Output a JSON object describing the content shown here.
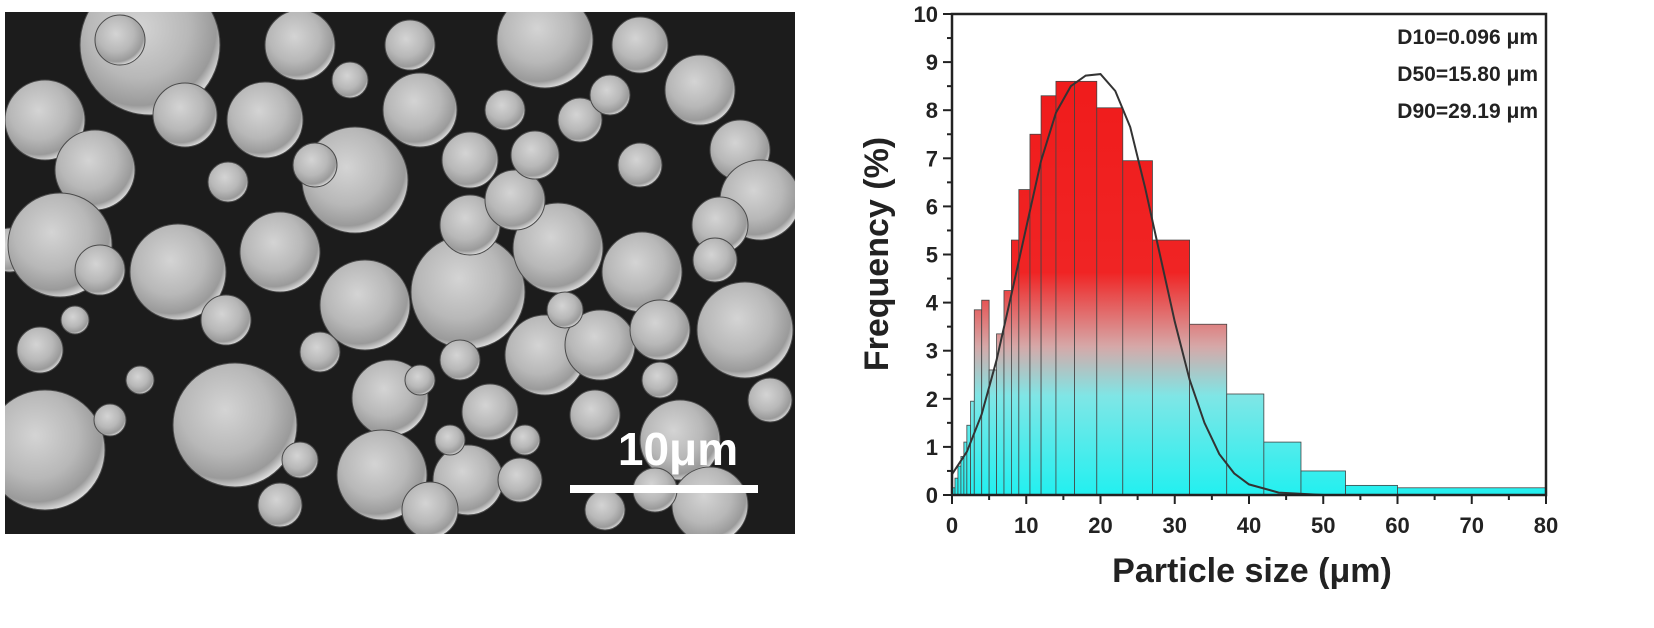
{
  "micrograph": {
    "scale_bar_label": "10μm"
  },
  "chart_data": {
    "type": "bar",
    "title": "",
    "xlabel": "Particle size (μm)",
    "ylabel": "Frequency (%)",
    "xlim": [
      0,
      80
    ],
    "ylim": [
      0,
      10
    ],
    "xticks": [
      "0",
      "10",
      "20",
      "30",
      "40",
      "50",
      "60",
      "70",
      "80"
    ],
    "yticks": [
      "0",
      "1",
      "2",
      "3",
      "4",
      "5",
      "6",
      "7",
      "8",
      "9",
      "10"
    ],
    "grid": false,
    "annotations": [
      "D10=0.096 μm",
      "D50=15.80 μm",
      "D90=29.19 μm"
    ],
    "bins": [
      {
        "x0": 0.0,
        "x1": 0.4,
        "value": 0.15
      },
      {
        "x0": 0.4,
        "x1": 0.8,
        "value": 0.35
      },
      {
        "x0": 0.8,
        "x1": 1.2,
        "value": 0.6
      },
      {
        "x0": 1.2,
        "x1": 1.6,
        "value": 0.8
      },
      {
        "x0": 1.6,
        "x1": 2.0,
        "value": 1.1
      },
      {
        "x0": 2.0,
        "x1": 2.5,
        "value": 1.45
      },
      {
        "x0": 2.5,
        "x1": 3.0,
        "value": 1.95
      },
      {
        "x0": 3.0,
        "x1": 4.0,
        "value": 3.85
      },
      {
        "x0": 4.0,
        "x1": 5.0,
        "value": 4.05
      },
      {
        "x0": 5.0,
        "x1": 6.0,
        "value": 2.6
      },
      {
        "x0": 6.0,
        "x1": 7.0,
        "value": 3.35
      },
      {
        "x0": 7.0,
        "x1": 8.0,
        "value": 4.25
      },
      {
        "x0": 8.0,
        "x1": 9.0,
        "value": 5.3
      },
      {
        "x0": 9.0,
        "x1": 10.5,
        "value": 6.35
      },
      {
        "x0": 10.5,
        "x1": 12.0,
        "value": 7.5
      },
      {
        "x0": 12.0,
        "x1": 14.0,
        "value": 8.3
      },
      {
        "x0": 14.0,
        "x1": 16.5,
        "value": 8.6
      },
      {
        "x0": 16.5,
        "x1": 19.5,
        "value": 8.6
      },
      {
        "x0": 19.5,
        "x1": 23.0,
        "value": 8.05
      },
      {
        "x0": 23.0,
        "x1": 27.0,
        "value": 6.95
      },
      {
        "x0": 27.0,
        "x1": 32.0,
        "value": 5.3
      },
      {
        "x0": 32.0,
        "x1": 37.0,
        "value": 3.55
      },
      {
        "x0": 37.0,
        "x1": 42.0,
        "value": 2.1
      },
      {
        "x0": 42.0,
        "x1": 47.0,
        "value": 1.1
      },
      {
        "x0": 47.0,
        "x1": 53.0,
        "value": 0.5
      },
      {
        "x0": 53.0,
        "x1": 60.0,
        "value": 0.2
      },
      {
        "x0": 60.0,
        "x1": 80.0,
        "value": 0.15
      }
    ],
    "fit_curve": {
      "type": "gaussian",
      "points": [
        [
          0,
          0.43
        ],
        [
          2,
          0.9
        ],
        [
          4,
          1.68
        ],
        [
          6,
          2.8
        ],
        [
          8,
          4.17
        ],
        [
          10,
          5.57
        ],
        [
          12,
          6.95
        ],
        [
          14,
          7.95
        ],
        [
          16,
          8.5
        ],
        [
          18,
          8.72
        ],
        [
          20,
          8.75
        ],
        [
          22,
          8.4
        ],
        [
          24,
          7.65
        ],
        [
          26,
          6.4
        ],
        [
          28,
          5.0
        ],
        [
          30,
          3.6
        ],
        [
          32,
          2.4
        ],
        [
          34,
          1.5
        ],
        [
          36,
          0.85
        ],
        [
          38,
          0.45
        ],
        [
          40,
          0.22
        ],
        [
          44,
          0.05
        ],
        [
          50,
          0.0
        ],
        [
          60,
          0.0
        ],
        [
          80,
          0.0
        ]
      ]
    },
    "colors": {
      "bar_top": "#f01818",
      "bar_bottom": "#22f0f0",
      "curve": "#333333"
    }
  }
}
